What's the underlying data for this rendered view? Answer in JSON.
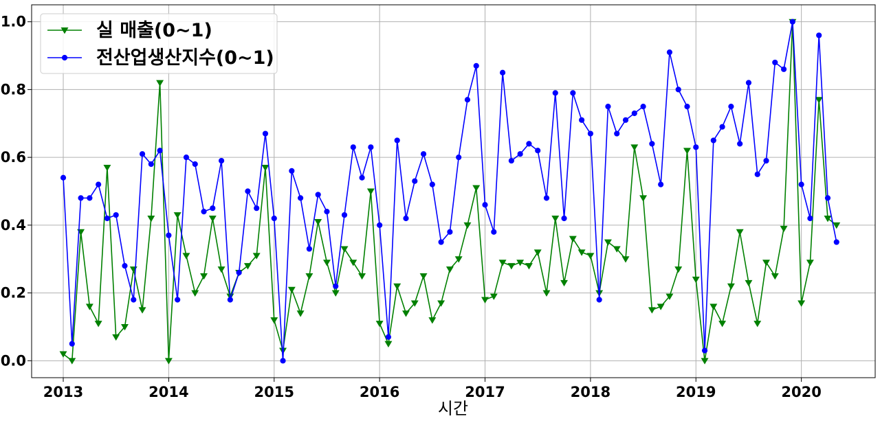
{
  "chart_data": {
    "type": "line",
    "title": "",
    "xlabel": "시간",
    "ylabel": "",
    "xlim": [
      2012.7,
      2020.7
    ],
    "ylim": [
      -0.05,
      1.05
    ],
    "x_ticks": [
      "2013",
      "2014",
      "2015",
      "2016",
      "2017",
      "2018",
      "2019",
      "2020"
    ],
    "y_ticks": [
      "0.0",
      "0.2",
      "0.4",
      "0.6",
      "0.8",
      "1.0"
    ],
    "grid": true,
    "legend_position": "top-left",
    "start": "2013-01",
    "series": [
      {
        "name": "실 매출(0~1)",
        "color": "#008000",
        "marker": "triangle-down",
        "values": [
          0.02,
          0.0,
          0.38,
          0.16,
          0.11,
          0.57,
          0.07,
          0.1,
          0.27,
          0.15,
          0.42,
          0.82,
          0.0,
          0.43,
          0.31,
          0.2,
          0.25,
          0.42,
          0.27,
          0.19,
          0.26,
          0.28,
          0.31,
          0.57,
          0.12,
          0.03,
          0.21,
          0.14,
          0.25,
          0.41,
          0.29,
          0.2,
          0.33,
          0.29,
          0.25,
          0.5,
          0.11,
          0.05,
          0.22,
          0.14,
          0.17,
          0.25,
          0.12,
          0.17,
          0.27,
          0.3,
          0.4,
          0.51,
          0.18,
          0.19,
          0.29,
          0.28,
          0.29,
          0.28,
          0.32,
          0.2,
          0.42,
          0.23,
          0.36,
          0.32,
          0.31,
          0.2,
          0.35,
          0.33,
          0.3,
          0.63,
          0.48,
          0.15,
          0.16,
          0.19,
          0.27,
          0.62,
          0.24,
          0.0,
          0.16,
          0.11,
          0.22,
          0.38,
          0.23,
          0.11,
          0.29,
          0.25,
          0.39,
          1.0,
          0.17,
          0.29,
          0.77,
          0.42,
          0.4
        ]
      },
      {
        "name": "전산업생산지수(0~1)",
        "color": "#0000ff",
        "marker": "circle",
        "values": [
          0.54,
          0.05,
          0.48,
          0.48,
          0.52,
          0.42,
          0.43,
          0.28,
          0.18,
          0.61,
          0.58,
          0.62,
          0.37,
          0.18,
          0.6,
          0.58,
          0.44,
          0.45,
          0.59,
          0.18,
          0.26,
          0.5,
          0.45,
          0.67,
          0.42,
          0.0,
          0.56,
          0.48,
          0.33,
          0.49,
          0.44,
          0.22,
          0.43,
          0.63,
          0.54,
          0.63,
          0.4,
          0.07,
          0.65,
          0.42,
          0.53,
          0.61,
          0.52,
          0.35,
          0.38,
          0.6,
          0.77,
          0.87,
          0.46,
          0.38,
          0.85,
          0.59,
          0.61,
          0.64,
          0.62,
          0.48,
          0.79,
          0.42,
          0.79,
          0.71,
          0.67,
          0.18,
          0.75,
          0.67,
          0.71,
          0.73,
          0.75,
          0.64,
          0.52,
          0.91,
          0.8,
          0.75,
          0.63,
          0.03,
          0.65,
          0.69,
          0.75,
          0.64,
          0.82,
          0.55,
          0.59,
          0.88,
          0.86,
          1.0,
          0.52,
          0.42,
          0.96,
          0.48,
          0.35
        ]
      }
    ]
  }
}
